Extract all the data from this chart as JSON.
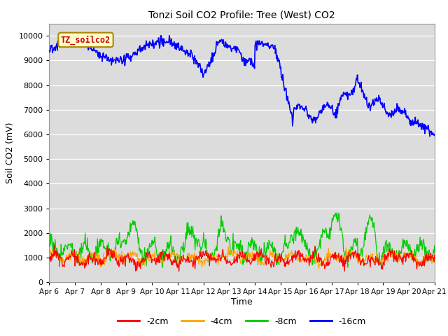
{
  "title": "Tonzi Soil CO2 Profile: Tree (West) CO2",
  "ylabel": "Soil CO2 (mV)",
  "xlabel": "Time",
  "ylim": [
    0,
    10500
  ],
  "yticks": [
    0,
    1000,
    2000,
    3000,
    4000,
    5000,
    6000,
    7000,
    8000,
    9000,
    10000
  ],
  "legend_label": "TZ_soilco2",
  "series_labels": [
    "-2cm",
    "-4cm",
    "-8cm",
    "-16cm"
  ],
  "series_colors": [
    "#ff0000",
    "#ffa500",
    "#00cc00",
    "#0000ff"
  ],
  "bg_color": "#dcdcdc",
  "n_points": 720,
  "start_day": 6,
  "end_day": 21,
  "figsize": [
    6.4,
    4.8
  ],
  "dpi": 100
}
